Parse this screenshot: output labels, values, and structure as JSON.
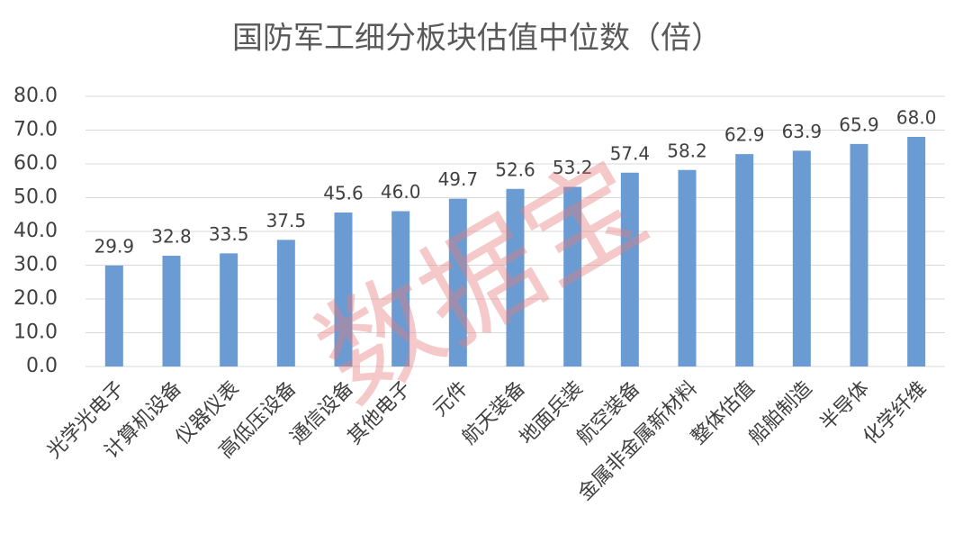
{
  "chart_data": {
    "type": "bar",
    "title": "国防军工细分板块估值中位数（倍）",
    "categories": [
      "光学光电子",
      "计算机设备",
      "仪器仪表",
      "高低压设备",
      "通信设备",
      "其他电子",
      "元件",
      "航天装备",
      "地面兵装",
      "航空装备",
      "金属非金属新材料",
      "整体估值",
      "船舶制造",
      "半导体",
      "化学纤维"
    ],
    "values": [
      29.9,
      32.8,
      33.5,
      37.5,
      45.6,
      46.0,
      49.7,
      52.6,
      53.2,
      57.4,
      58.2,
      62.9,
      63.9,
      65.9,
      68.0
    ],
    "value_labels": [
      "29.9",
      "32.8",
      "33.5",
      "37.5",
      "45.6",
      "46.0",
      "49.7",
      "52.6",
      "53.2",
      "57.4",
      "58.2",
      "62.9",
      "63.9",
      "65.9",
      "68.0"
    ],
    "color": "#6a9bd3",
    "ylim": [
      0,
      80
    ],
    "yticks": [
      {
        "value": 0,
        "label": "0.0"
      },
      {
        "value": 10,
        "label": "10.0"
      },
      {
        "value": 20,
        "label": "20.0"
      },
      {
        "value": 30,
        "label": "30.0"
      },
      {
        "value": 40,
        "label": "40.0"
      },
      {
        "value": 50,
        "label": "50.0"
      },
      {
        "value": 60,
        "label": "60.0"
      },
      {
        "value": 70,
        "label": "70.0"
      },
      {
        "value": 80,
        "label": "80.0"
      }
    ],
    "grid": true,
    "watermark": "数据宝"
  }
}
